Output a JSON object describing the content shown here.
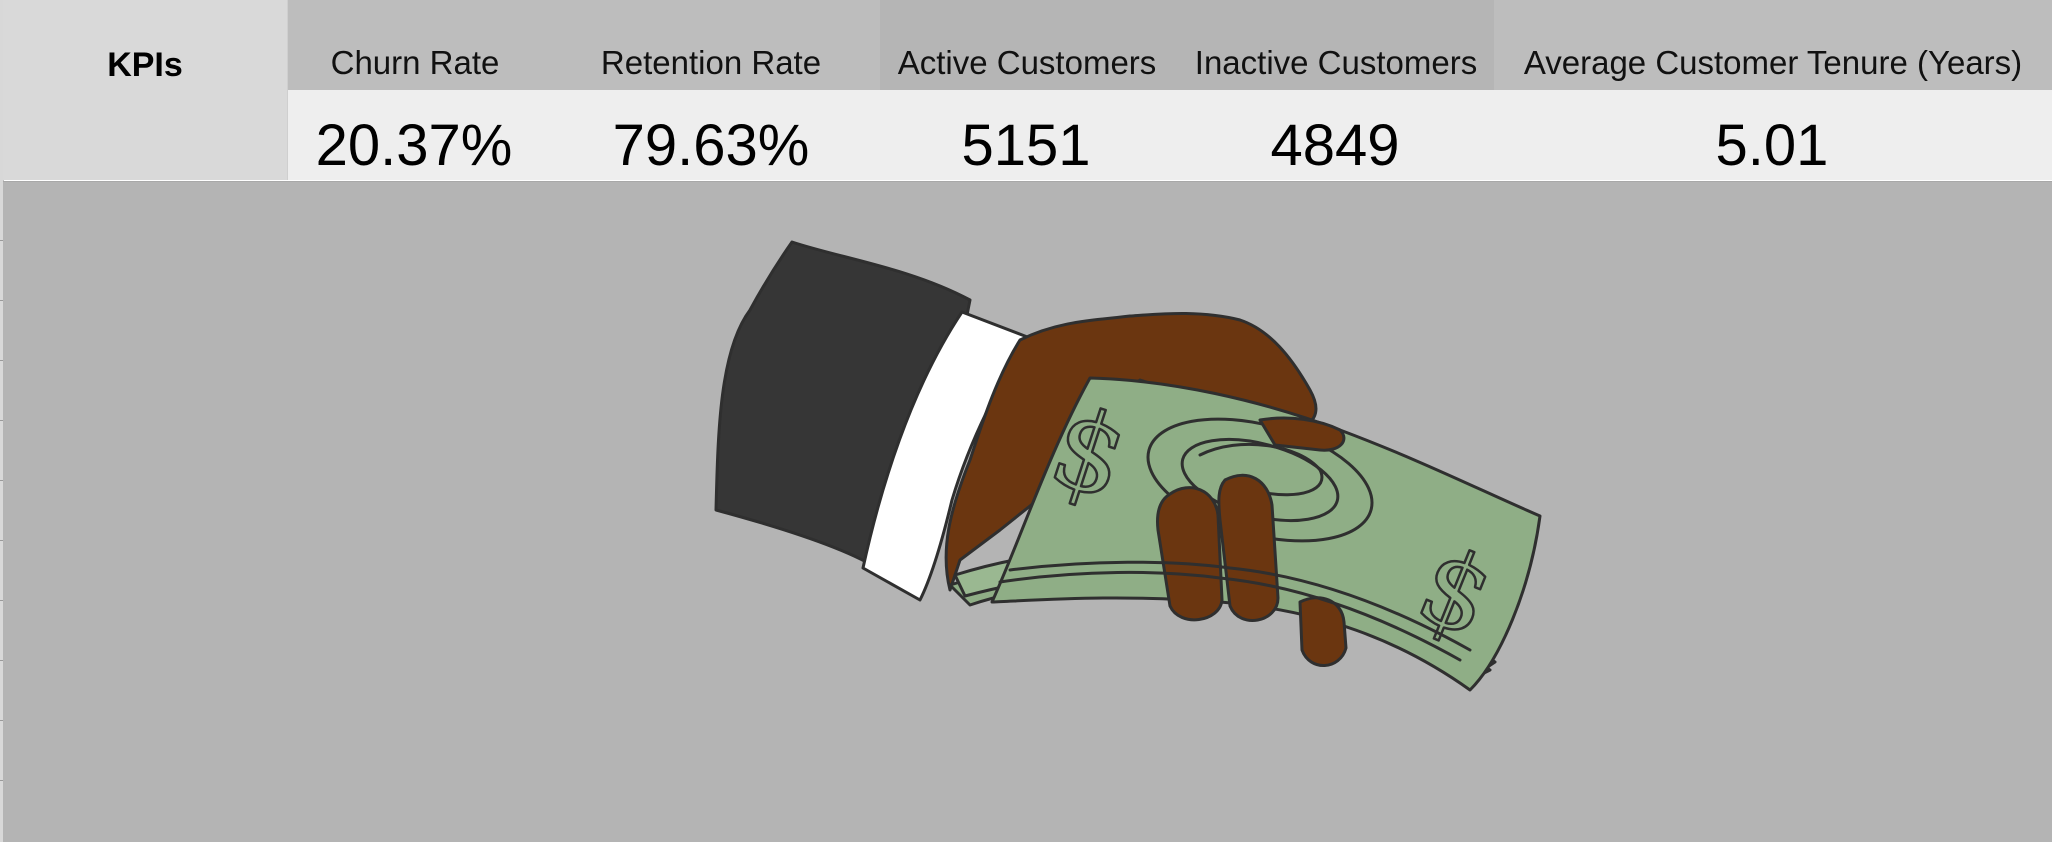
{
  "kpi_panel": {
    "row_label": "KPIs",
    "metrics": [
      {
        "label": "Churn Rate",
        "value": "20.37%"
      },
      {
        "label": "Retention Rate",
        "value": "79.63%"
      },
      {
        "label": "Active Customers",
        "value": "5151"
      },
      {
        "label": "Inactive Customers",
        "value": "4849"
      },
      {
        "label": "Average Customer Tenure (Years)",
        "value": "5.01"
      }
    ]
  },
  "illustration": {
    "icon": "hand-holding-money-icon",
    "colors": {
      "sleeve": "#363636",
      "cuff": "#ffffff",
      "skin": "#6b3610",
      "cash": "#8fae86",
      "outline": "#2f2f2f"
    }
  },
  "colors": {
    "header_band": "#bdbdbd",
    "value_band": "#eeeeee",
    "label_cell": "#d9d9d9",
    "canvas_background": "#b4b4b4"
  }
}
